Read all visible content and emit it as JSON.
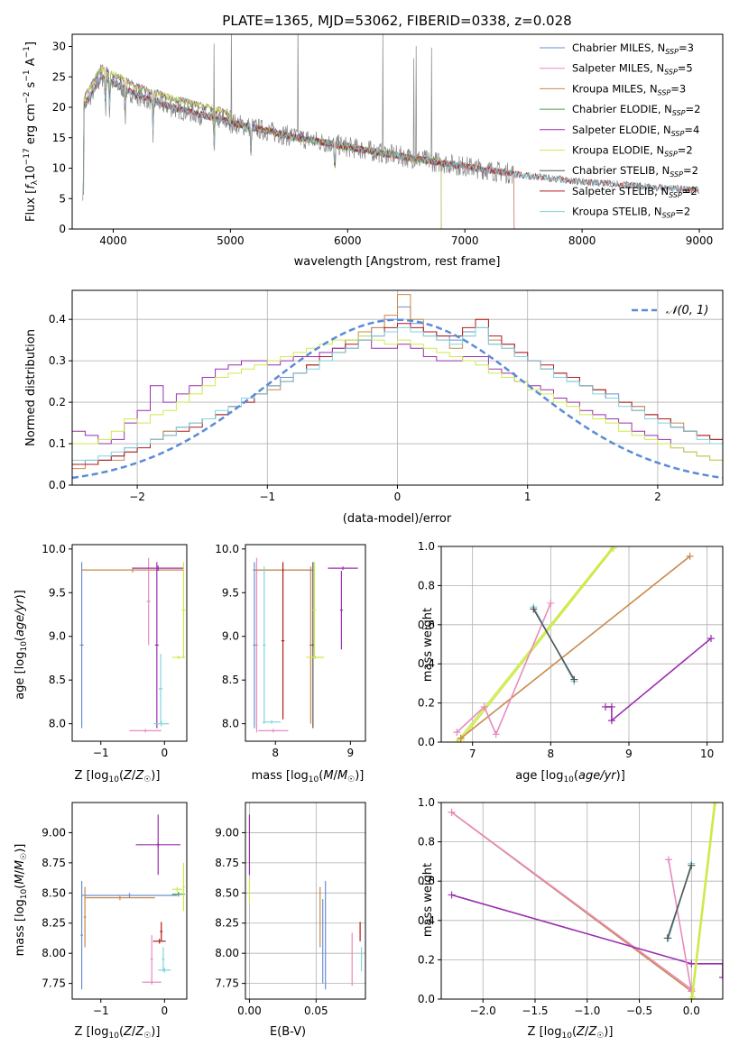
{
  "title": "PLATE=1365, MJD=53062, FIBERID=0338, z=0.028",
  "colors": {
    "Chabrier MILES": "#6b8fd4",
    "Salpeter MILES": "#e88bbf",
    "Kroupa MILES": "#c9894a",
    "Chabrier ELODIE": "#4e9a4e",
    "Salpeter ELODIE": "#9b2fae",
    "Kroupa ELODIE": "#cdea4a",
    "Chabrier STELIB": "#555555",
    "Salpeter STELIB": "#b21a1a",
    "Kroupa STELIB": "#7fd3e0",
    "gauss": "#5b8bd6",
    "spectrum": "#888888"
  },
  "chart_data": [
    {
      "type": "line",
      "xlabel": "wavelength [Angstrom, rest frame]",
      "ylabel": "Flux [f_λ 10^-17 erg cm^-2 s^-1 A^-1]",
      "xlim": [
        3650,
        9200
      ],
      "ylim": [
        0,
        32
      ],
      "xticks": [
        "4000",
        "5000",
        "6000",
        "7000",
        "8000",
        "9000"
      ],
      "yticks": [
        "0",
        "5",
        "10",
        "15",
        "20",
        "25",
        "30"
      ],
      "legend_position": "top-right",
      "series": [
        {
          "name": "Chabrier MILES",
          "nssp": "3"
        },
        {
          "name": "Salpeter MILES",
          "nssp": "5"
        },
        {
          "name": "Kroupa MILES",
          "nssp": "3"
        },
        {
          "name": "Chabrier ELODIE",
          "nssp": "2"
        },
        {
          "name": "Salpeter ELODIE",
          "nssp": "4"
        },
        {
          "name": "Kroupa ELODIE",
          "nssp": "2"
        },
        {
          "name": "Chabrier STELIB",
          "nssp": "2"
        },
        {
          "name": "Salpeter STELIB",
          "nssp": "2"
        },
        {
          "name": "Kroupa STELIB",
          "nssp": "2"
        }
      ],
      "continuum": {
        "x": [
          3750,
          3900,
          4000,
          4200,
          4500,
          5000,
          5500,
          6000,
          6500,
          7000,
          7500,
          8000,
          8500,
          9000
        ],
        "y": [
          20,
          25,
          24,
          22,
          20,
          17.5,
          15.3,
          13.5,
          11.8,
          10.3,
          8.8,
          7.8,
          7.0,
          6.4
        ]
      }
    },
    {
      "type": "line",
      "subtype": "histogram",
      "xlabel": "(data-model)/error",
      "ylabel": "Normed distribution",
      "xlim": [
        -2.5,
        2.5
      ],
      "ylim": [
        0,
        0.47
      ],
      "xticks": [
        "−2",
        "−1",
        "0",
        "1",
        "2"
      ],
      "yticks": [
        "0.0",
        "0.1",
        "0.2",
        "0.3",
        "0.4"
      ],
      "legend_label": "𝒩(0, 1)",
      "legend_position": "top-right",
      "bin_width": 0.1,
      "histograms": {
        "Chabrier MILES": [
          0.05,
          0.06,
          0.06,
          0.07,
          0.09,
          0.1,
          0.11,
          0.13,
          0.14,
          0.15,
          0.16,
          0.17,
          0.19,
          0.21,
          0.22,
          0.24,
          0.26,
          0.27,
          0.29,
          0.31,
          0.33,
          0.35,
          0.36,
          0.38,
          0.4,
          0.43,
          0.39,
          0.37,
          0.36,
          0.35,
          0.37,
          0.38,
          0.34,
          0.34,
          0.32,
          0.3,
          0.28,
          0.27,
          0.25,
          0.24,
          0.23,
          0.22,
          0.2,
          0.19,
          0.17,
          0.16,
          0.14,
          0.13,
          0.12,
          0.11
        ],
        "Kroupa MILES": [
          0.04,
          0.05,
          0.06,
          0.06,
          0.08,
          0.1,
          0.11,
          0.13,
          0.14,
          0.15,
          0.16,
          0.17,
          0.19,
          0.2,
          0.22,
          0.23,
          0.25,
          0.27,
          0.29,
          0.31,
          0.33,
          0.35,
          0.37,
          0.38,
          0.41,
          0.46,
          0.4,
          0.36,
          0.35,
          0.33,
          0.36,
          0.4,
          0.35,
          0.33,
          0.31,
          0.3,
          0.28,
          0.27,
          0.26,
          0.24,
          0.23,
          0.21,
          0.2,
          0.19,
          0.17,
          0.16,
          0.15,
          0.13,
          0.12,
          0.11
        ],
        "Salpeter ELODIE": [
          0.13,
          0.12,
          0.1,
          0.11,
          0.15,
          0.18,
          0.24,
          0.2,
          0.22,
          0.24,
          0.26,
          0.28,
          0.29,
          0.3,
          0.3,
          0.29,
          0.3,
          0.31,
          0.31,
          0.32,
          0.33,
          0.33,
          0.35,
          0.33,
          0.33,
          0.34,
          0.33,
          0.31,
          0.3,
          0.3,
          0.31,
          0.31,
          0.28,
          0.27,
          0.25,
          0.24,
          0.23,
          0.21,
          0.2,
          0.18,
          0.17,
          0.16,
          0.15,
          0.13,
          0.12,
          0.11,
          0.09,
          0.08,
          0.07,
          0.06
        ],
        "Kroupa ELODIE": [
          0.1,
          0.1,
          0.11,
          0.13,
          0.16,
          0.15,
          0.17,
          0.18,
          0.2,
          0.22,
          0.24,
          0.26,
          0.27,
          0.28,
          0.29,
          0.3,
          0.31,
          0.32,
          0.33,
          0.34,
          0.35,
          0.35,
          0.36,
          0.35,
          0.34,
          0.35,
          0.34,
          0.33,
          0.32,
          0.31,
          0.3,
          0.29,
          0.27,
          0.26,
          0.25,
          0.23,
          0.22,
          0.2,
          0.19,
          0.17,
          0.16,
          0.15,
          0.13,
          0.12,
          0.11,
          0.1,
          0.09,
          0.08,
          0.07,
          0.06
        ],
        "Salpeter STELIB": [
          0.05,
          0.05,
          0.06,
          0.07,
          0.08,
          0.09,
          0.11,
          0.12,
          0.13,
          0.14,
          0.16,
          0.17,
          0.19,
          0.2,
          0.22,
          0.24,
          0.25,
          0.27,
          0.29,
          0.31,
          0.32,
          0.34,
          0.35,
          0.36,
          0.38,
          0.39,
          0.38,
          0.37,
          0.36,
          0.36,
          0.38,
          0.4,
          0.36,
          0.34,
          0.32,
          0.3,
          0.29,
          0.27,
          0.26,
          0.24,
          0.23,
          0.21,
          0.2,
          0.18,
          0.17,
          0.16,
          0.14,
          0.13,
          0.12,
          0.11
        ],
        "Kroupa STELIB": [
          0.06,
          0.06,
          0.07,
          0.08,
          0.09,
          0.1,
          0.11,
          0.12,
          0.14,
          0.15,
          0.16,
          0.18,
          0.19,
          0.21,
          0.22,
          0.24,
          0.25,
          0.27,
          0.28,
          0.3,
          0.32,
          0.33,
          0.35,
          0.36,
          0.37,
          0.38,
          0.37,
          0.36,
          0.35,
          0.34,
          0.36,
          0.38,
          0.34,
          0.33,
          0.31,
          0.3,
          0.28,
          0.26,
          0.25,
          0.24,
          0.22,
          0.21,
          0.19,
          0.18,
          0.16,
          0.15,
          0.14,
          0.13,
          0.11,
          0.1
        ]
      },
      "gaussian": {
        "mean": 0,
        "sigma": 1
      }
    },
    {
      "type": "scatter",
      "xlabel": "Z [log10(Z/Z⊙)]",
      "ylabel": "age [log10(age/yr)]",
      "xlim": [
        -1.45,
        0.35
      ],
      "ylim": [
        7.8,
        10.05
      ],
      "xticks": [
        "−1",
        "0"
      ],
      "yticks": [
        "8.0",
        "8.5",
        "9.0",
        "9.5",
        "10.0"
      ],
      "points": [
        {
          "model": "Chabrier MILES",
          "x": -1.3,
          "y": 8.9,
          "xe": 0.03,
          "ye": 0.95
        },
        {
          "model": "Kroupa MILES",
          "x": -0.5,
          "y": 9.76,
          "xe": 0.8,
          "ye": 0.03
        },
        {
          "model": "Salpeter MILES",
          "x": -0.25,
          "y": 9.4,
          "xe": 0.03,
          "ye": 0.5
        },
        {
          "model": "Salpeter ELODIE",
          "x": -0.1,
          "y": 9.78,
          "xe": 0.4,
          "ye": 0.03
        },
        {
          "model": "Salpeter ELODIE",
          "x": -0.12,
          "y": 8.9,
          "xe": 0.03,
          "ye": 0.95
        },
        {
          "model": "Kroupa STELIB",
          "x": -0.05,
          "y": 8.0,
          "xe": 0.12,
          "ye": 0.03
        },
        {
          "model": "Kroupa STELIB",
          "x": -0.06,
          "y": 8.4,
          "xe": 0.03,
          "ye": 0.4
        },
        {
          "model": "Salpeter MILES",
          "x": -0.3,
          "y": 7.92,
          "xe": 0.25,
          "ye": 0.02
        },
        {
          "model": "Kroupa ELODIE",
          "x": 0.3,
          "y": 9.3,
          "xe": 0.03,
          "ye": 0.55
        },
        {
          "model": "Kroupa ELODIE",
          "x": 0.22,
          "y": 8.76,
          "xe": 0.1,
          "ye": 0.02
        }
      ]
    },
    {
      "type": "scatter",
      "xlabel": "mass [log10(M/M⊙)]",
      "ylabel": "",
      "xlim": [
        7.6,
        9.2
      ],
      "ylim": [
        7.8,
        10.05
      ],
      "xticks": [
        "8",
        "9"
      ],
      "yticks": [
        "8.0",
        "8.5",
        "9.0",
        "9.5",
        "10.0"
      ],
      "points": [
        {
          "model": "Chabrier MILES",
          "x": 7.72,
          "y": 8.9,
          "xe": 0.02,
          "ye": 0.95
        },
        {
          "model": "Chabrier MILES",
          "x": 8.1,
          "y": 9.76,
          "xe": 0.4,
          "ye": 0.02
        },
        {
          "model": "Salpeter MILES",
          "x": 7.75,
          "y": 8.9,
          "xe": 0.02,
          "ye": 1.0
        },
        {
          "model": "Salpeter MILES",
          "x": 7.97,
          "y": 7.92,
          "xe": 0.2,
          "ye": 0.02
        },
        {
          "model": "Kroupa MILES",
          "x": 8.1,
          "y": 9.76,
          "xe": 0.38,
          "ye": 0.02
        },
        {
          "model": "Kroupa MILES",
          "x": 8.47,
          "y": 8.9,
          "xe": 0.02,
          "ye": 0.9
        },
        {
          "model": "Kroupa STELIB",
          "x": 7.85,
          "y": 8.9,
          "xe": 0.02,
          "ye": 0.9
        },
        {
          "model": "Kroupa STELIB",
          "x": 7.95,
          "y": 8.02,
          "xe": 0.12,
          "ye": 0.02
        },
        {
          "model": "Chabrier STELIB",
          "x": 8.5,
          "y": 8.9,
          "xe": 0.02,
          "ye": 0.95
        },
        {
          "model": "Salpeter STELIB",
          "x": 8.1,
          "y": 8.95,
          "xe": 0.02,
          "ye": 0.9
        },
        {
          "model": "Salpeter ELODIE",
          "x": 8.9,
          "y": 9.78,
          "xe": 0.2,
          "ye": 0.02
        },
        {
          "model": "Salpeter ELODIE",
          "x": 8.88,
          "y": 9.3,
          "xe": 0.02,
          "ye": 0.45
        },
        {
          "model": "Kroupa ELODIE",
          "x": 8.53,
          "y": 8.76,
          "xe": 0.12,
          "ye": 0.02
        },
        {
          "model": "Kroupa ELODIE",
          "x": 8.52,
          "y": 9.3,
          "xe": 0.02,
          "ye": 0.55
        }
      ]
    },
    {
      "type": "line",
      "xlabel": "age [log10(age/yr)]",
      "ylabel": "mass weight",
      "xlim": [
        6.6,
        10.2
      ],
      "ylim": [
        0,
        1
      ],
      "xticks": [
        "7",
        "8",
        "9",
        "10"
      ],
      "yticks": [
        "0.0",
        "0.2",
        "0.4",
        "0.6",
        "0.8",
        "1.0"
      ],
      "series": [
        {
          "model": "Kroupa ELODIE",
          "x": [
            6.8,
            8.8
          ],
          "y": [
            0.0,
            1.0
          ]
        },
        {
          "model": "Kroupa ELODIE",
          "x": [
            6.85,
            8.8
          ],
          "y": [
            0.01,
            0.99
          ]
        },
        {
          "model": "Kroupa MILES",
          "x": [
            6.85,
            9.78
          ],
          "y": [
            0.02,
            0.95
          ]
        },
        {
          "model": "Salpeter MILES",
          "x": [
            6.8,
            7.15,
            7.3,
            8.0
          ],
          "y": [
            0.05,
            0.18,
            0.04,
            0.71
          ]
        },
        {
          "model": "Kroupa STELIB",
          "x": [
            7.78,
            8.3
          ],
          "y": [
            0.69,
            0.31
          ]
        },
        {
          "model": "Chabrier STELIB",
          "x": [
            7.78,
            8.3
          ],
          "y": [
            0.68,
            0.32
          ]
        },
        {
          "model": "Salpeter ELODIE",
          "x": [
            8.7,
            8.78,
            8.78,
            10.05
          ],
          "y": [
            0.18,
            0.18,
            0.11,
            0.53
          ]
        }
      ]
    },
    {
      "type": "scatter",
      "xlabel": "Z [log10(Z/Z⊙)]",
      "ylabel": "mass [log10(M/M⊙)]",
      "xlim": [
        -1.45,
        0.35
      ],
      "ylim": [
        7.62,
        9.25
      ],
      "xticks": [
        "−1",
        "0"
      ],
      "yticks": [
        "7.75",
        "8.00",
        "8.25",
        "8.50",
        "8.75",
        "9.00"
      ],
      "points": [
        {
          "model": "Chabrier MILES",
          "x": -1.3,
          "y": 8.15,
          "xe": 0.02,
          "ye": 0.45
        },
        {
          "model": "Chabrier MILES",
          "x": -0.55,
          "y": 8.48,
          "xe": 0.75,
          "ye": 0.02
        },
        {
          "model": "Kroupa MILES",
          "x": -1.25,
          "y": 8.3,
          "xe": 0.02,
          "ye": 0.25
        },
        {
          "model": "Kroupa MILES",
          "x": -0.7,
          "y": 8.46,
          "xe": 0.55,
          "ye": 0.02
        },
        {
          "model": "Salpeter MILES",
          "x": -0.2,
          "y": 7.95,
          "xe": 0.02,
          "ye": 0.2
        },
        {
          "model": "Salpeter MILES",
          "x": -0.2,
          "y": 7.76,
          "xe": 0.15,
          "ye": 0.02
        },
        {
          "model": "Salpeter ELODIE",
          "x": -0.1,
          "y": 8.9,
          "xe": 0.35,
          "ye": 0.02
        },
        {
          "model": "Salpeter ELODIE",
          "x": -0.1,
          "y": 8.9,
          "xe": 0.02,
          "ye": 0.25
        },
        {
          "model": "Salpeter STELIB",
          "x": -0.08,
          "y": 8.1,
          "xe": 0.1,
          "ye": 0.02
        },
        {
          "model": "Salpeter STELIB",
          "x": -0.05,
          "y": 8.18,
          "xe": 0.02,
          "ye": 0.08
        },
        {
          "model": "Kroupa STELIB",
          "x": 0.0,
          "y": 7.86,
          "xe": 0.1,
          "ye": 0.02
        },
        {
          "model": "Kroupa STELIB",
          "x": -0.02,
          "y": 7.95,
          "xe": 0.02,
          "ye": 0.1
        },
        {
          "model": "Kroupa ELODIE",
          "x": 0.2,
          "y": 8.53,
          "xe": 0.08,
          "ye": 0.02
        },
        {
          "model": "Chabrier ELODIE",
          "x": 0.22,
          "y": 8.49,
          "xe": 0.1,
          "ye": 0.02
        },
        {
          "model": "Kroupa ELODIE",
          "x": 0.3,
          "y": 8.55,
          "xe": 0.02,
          "ye": 0.2
        }
      ]
    },
    {
      "type": "scatter",
      "xlabel": "E(B-V)",
      "ylabel": "",
      "xlim": [
        -0.003,
        0.087
      ],
      "ylim": [
        7.62,
        9.25
      ],
      "xticks": [
        "0.00",
        "0.05"
      ],
      "yticks": [
        "7.75",
        "8.00",
        "8.25",
        "8.50",
        "8.75",
        "9.00"
      ],
      "points": [
        {
          "model": "Salpeter ELODIE",
          "x": 0.0,
          "y": 8.9,
          "xe": 0,
          "ye": 0.25
        },
        {
          "model": "Kroupa ELODIE",
          "x": 0.0,
          "y": 8.52,
          "xe": 0,
          "ye": 0.1
        },
        {
          "model": "Kroupa MILES",
          "x": 0.053,
          "y": 8.3,
          "xe": 0,
          "ye": 0.25
        },
        {
          "model": "Chabrier MILES",
          "x": 0.055,
          "y": 8.1,
          "xe": 0,
          "ye": 0.35
        },
        {
          "model": "Chabrier MILES",
          "x": 0.057,
          "y": 8.15,
          "xe": 0,
          "ye": 0.45
        },
        {
          "model": "Salpeter MILES",
          "x": 0.077,
          "y": 7.95,
          "xe": 0,
          "ye": 0.22
        },
        {
          "model": "Salpeter STELIB",
          "x": 0.083,
          "y": 8.18,
          "xe": 0,
          "ye": 0.08
        },
        {
          "model": "Kroupa STELIB",
          "x": 0.084,
          "y": 7.95,
          "xe": 0,
          "ye": 0.1
        }
      ]
    },
    {
      "type": "line",
      "xlabel": "Z [log10(Z/Z⊙)]",
      "ylabel": "mass weight",
      "xlim": [
        -2.4,
        0.3
      ],
      "ylim": [
        0,
        1
      ],
      "xticks": [
        "−2.0",
        "−1.5",
        "−1.0",
        "−0.5",
        "0.0"
      ],
      "yticks": [
        "0.0",
        "0.2",
        "0.4",
        "0.6",
        "0.8",
        "1.0"
      ],
      "series": [
        {
          "model": "Kroupa MILES",
          "x": [
            -2.3,
            0.0
          ],
          "y": [
            0.95,
            0.04
          ]
        },
        {
          "model": "Salpeter MILES",
          "x": [
            -2.3,
            0.0
          ],
          "y": [
            0.95,
            0.05
          ]
        },
        {
          "model": "Salpeter ELODIE",
          "x": [
            -2.3,
            0.0,
            0.3,
            0.3
          ],
          "y": [
            0.53,
            0.18,
            0.18,
            0.11
          ]
        },
        {
          "model": "Salpeter MILES",
          "x": [
            -0.22,
            0.0
          ],
          "y": [
            0.71,
            0.04
          ]
        },
        {
          "model": "Kroupa STELIB",
          "x": [
            -0.22,
            0.0
          ],
          "y": [
            0.31,
            0.69
          ]
        },
        {
          "model": "Chabrier STELIB",
          "x": [
            -0.23,
            0.0
          ],
          "y": [
            0.31,
            0.68
          ]
        },
        {
          "model": "Kroupa ELODIE",
          "x": [
            0.0,
            0.22
          ],
          "y": [
            0.0,
            1.0
          ]
        },
        {
          "model": "Kroupa ELODIE",
          "x": [
            0.01,
            0.23
          ],
          "y": [
            0.01,
            1.0
          ]
        }
      ]
    }
  ]
}
